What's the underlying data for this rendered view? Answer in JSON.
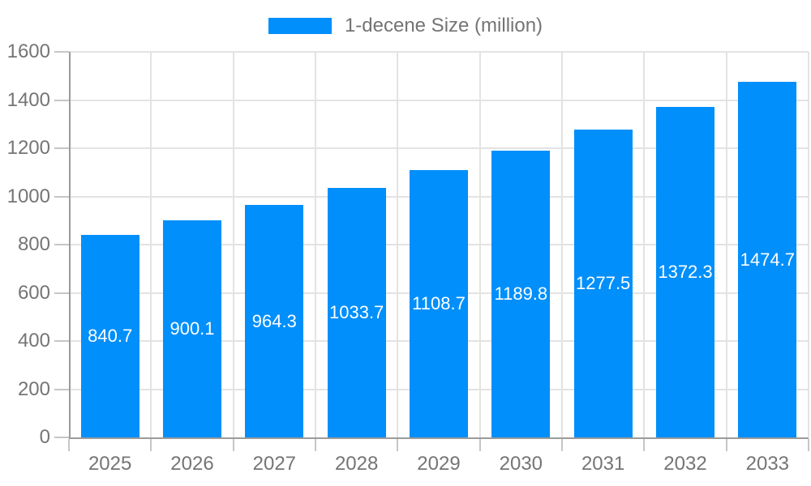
{
  "chart_data": {
    "type": "bar",
    "title": "",
    "legend": "1-decene Size (million)",
    "legend_position": "top-center",
    "categories": [
      "2025",
      "2026",
      "2027",
      "2028",
      "2029",
      "2030",
      "2031",
      "2032",
      "2033"
    ],
    "values": [
      840.7,
      900.1,
      964.3,
      1033.7,
      1108.7,
      1189.8,
      1277.5,
      1372.3,
      1474.7
    ],
    "data_labels": [
      "840.7",
      "900.1",
      "964.3",
      "1033.7",
      "1108.7",
      "1189.8",
      "1277.5",
      "1372.3",
      "1474.7"
    ],
    "xlabel": "",
    "ylabel": "",
    "ylim": [
      0,
      1600
    ],
    "ytick_step": 200,
    "yticks": [
      0,
      200,
      400,
      600,
      800,
      1000,
      1200,
      1400,
      1600
    ],
    "grid": true,
    "colors": {
      "bar": "#008FFB",
      "bar_label": "#FFFFFF",
      "axis_text": "#757575",
      "legend_text": "#747474",
      "grid_line": "#E3E3E3",
      "axis_line": "#9B9B9B",
      "tick": "#C6C6C6",
      "background": "#FFFFFF"
    }
  }
}
